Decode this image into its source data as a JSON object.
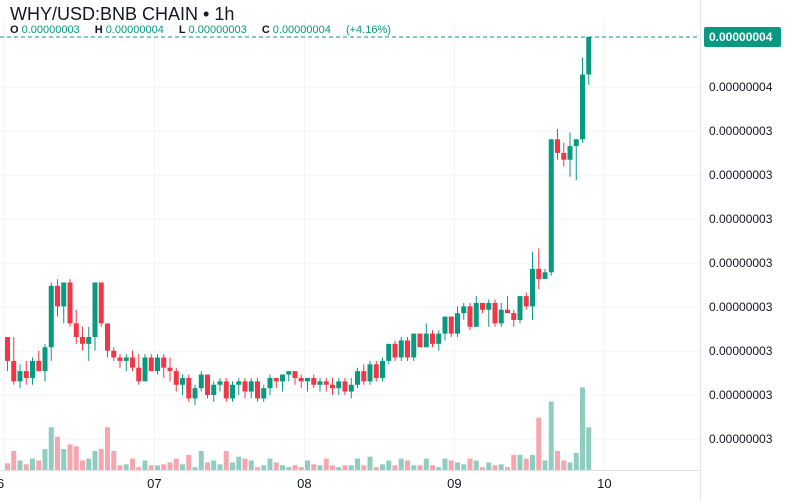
{
  "header": {
    "title": "WHY/USD:BNB CHAIN • 1h",
    "ohlc": {
      "o_label": "O",
      "o_value": "0.00000003",
      "h_label": "H",
      "h_value": "0.00000004",
      "l_label": "L",
      "l_value": "0.00000003",
      "c_label": "C",
      "c_value": "0.00000004",
      "change": "(+4.16%)"
    }
  },
  "colors": {
    "up": "#089981",
    "down": "#f23645",
    "vol_up": "#8fcdc1",
    "vol_down": "#f5a6ae",
    "grid": "#f0f3fa",
    "axis_text": "#131722",
    "price_tag_bg": "#089981"
  },
  "chart_data": {
    "type": "candlestick",
    "last_price_label": "0.00000004",
    "y_tick_labels": [
      "0.00000004",
      "0.00000003",
      "0.00000003",
      "0.00000003",
      "0.00000003",
      "0.00000003",
      "0.00000003",
      "0.00000003",
      "0.00000003"
    ],
    "x_tick_labels": [
      "6",
      "07",
      "08",
      "09",
      "10"
    ],
    "x_ticks_at_candle": [
      -0.5,
      23.5,
      47.5,
      71.5,
      95.5
    ],
    "ylim": [
      2.73,
      4.0
    ],
    "volume_max": 100,
    "candles": [
      [
        3.12,
        3.12,
        3.02,
        3.05,
        7
      ],
      [
        3.05,
        3.12,
        2.98,
        2.99,
        20
      ],
      [
        2.99,
        3.04,
        2.97,
        3.02,
        10
      ],
      [
        3.02,
        3.05,
        2.98,
        3.0,
        6
      ],
      [
        3.0,
        3.06,
        2.98,
        3.05,
        12
      ],
      [
        3.05,
        3.08,
        3.02,
        3.02,
        10
      ],
      [
        3.02,
        3.1,
        2.99,
        3.09,
        22
      ],
      [
        3.09,
        3.28,
        3.05,
        3.27,
        45
      ],
      [
        3.27,
        3.29,
        3.18,
        3.21,
        35
      ],
      [
        3.21,
        3.28,
        3.16,
        3.28,
        22
      ],
      [
        3.28,
        3.29,
        3.15,
        3.16,
        27
      ],
      [
        3.16,
        3.2,
        3.1,
        3.12,
        25
      ],
      [
        3.12,
        3.15,
        3.08,
        3.1,
        10
      ],
      [
        3.1,
        3.15,
        3.05,
        3.12,
        12
      ],
      [
        3.12,
        3.28,
        3.08,
        3.28,
        20
      ],
      [
        3.28,
        3.28,
        3.15,
        3.16,
        22
      ],
      [
        3.16,
        3.16,
        3.06,
        3.08,
        45
      ],
      [
        3.08,
        3.09,
        3.05,
        3.06,
        20
      ],
      [
        3.06,
        3.07,
        3.03,
        3.05,
        5
      ],
      [
        3.05,
        3.07,
        3.02,
        3.06,
        6
      ],
      [
        3.06,
        3.08,
        3.02,
        3.03,
        12
      ],
      [
        3.03,
        3.07,
        2.98,
        2.99,
        3
      ],
      [
        2.99,
        3.07,
        2.99,
        3.06,
        10
      ],
      [
        3.06,
        3.07,
        3.02,
        3.02,
        5
      ],
      [
        3.02,
        3.07,
        3.01,
        3.06,
        5
      ],
      [
        3.06,
        3.07,
        3.0,
        3.03,
        6
      ],
      [
        3.03,
        3.06,
        2.99,
        3.02,
        8
      ],
      [
        3.02,
        3.03,
        2.96,
        2.98,
        12
      ],
      [
        2.98,
        3.01,
        2.95,
        3.0,
        6
      ],
      [
        3.0,
        3.01,
        2.93,
        2.94,
        16
      ],
      [
        2.94,
        2.98,
        2.92,
        2.97,
        3
      ],
      [
        2.97,
        3.02,
        2.96,
        3.01,
        20
      ],
      [
        3.01,
        3.01,
        2.94,
        2.95,
        8
      ],
      [
        2.95,
        2.99,
        2.93,
        2.98,
        10
      ],
      [
        2.98,
        3.0,
        2.96,
        2.99,
        6
      ],
      [
        2.99,
        3.0,
        2.93,
        2.94,
        20
      ],
      [
        2.94,
        2.99,
        2.93,
        2.98,
        8
      ],
      [
        2.98,
        3.0,
        2.95,
        2.99,
        14
      ],
      [
        2.99,
        3.0,
        2.94,
        2.96,
        12
      ],
      [
        2.96,
        3.0,
        2.94,
        2.99,
        10
      ],
      [
        2.99,
        3.0,
        2.93,
        2.94,
        3
      ],
      [
        2.94,
        2.98,
        2.93,
        2.97,
        5
      ],
      [
        2.97,
        3.01,
        2.95,
        3.0,
        12
      ],
      [
        3.0,
        3.0,
        2.97,
        2.99,
        8
      ],
      [
        2.99,
        3.01,
        2.96,
        3.01,
        5
      ],
      [
        3.01,
        3.02,
        2.99,
        3.02,
        3
      ],
      [
        3.02,
        3.02,
        2.98,
        3.0,
        5
      ],
      [
        3.0,
        3.01,
        2.97,
        2.99,
        3
      ],
      [
        2.99,
        3.0,
        2.96,
        3.0,
        10
      ],
      [
        3.0,
        3.01,
        2.97,
        2.98,
        6
      ],
      [
        2.98,
        3.0,
        2.96,
        2.99,
        5
      ],
      [
        2.99,
        3.0,
        2.96,
        2.98,
        12
      ],
      [
        2.98,
        3.0,
        2.95,
        2.97,
        5
      ],
      [
        2.97,
        3.0,
        2.95,
        2.99,
        3
      ],
      [
        2.99,
        3.0,
        2.95,
        2.96,
        5
      ],
      [
        2.96,
        3.0,
        2.94,
        2.98,
        5
      ],
      [
        2.98,
        3.03,
        2.97,
        3.02,
        12
      ],
      [
        3.02,
        3.04,
        2.98,
        2.99,
        5
      ],
      [
        2.99,
        3.05,
        2.98,
        3.04,
        14
      ],
      [
        3.04,
        3.05,
        2.99,
        3.0,
        3
      ],
      [
        3.0,
        3.06,
        2.99,
        3.05,
        6
      ],
      [
        3.05,
        3.1,
        3.04,
        3.1,
        10
      ],
      [
        3.1,
        3.11,
        3.05,
        3.06,
        5
      ],
      [
        3.06,
        3.12,
        3.05,
        3.11,
        12
      ],
      [
        3.11,
        3.12,
        3.05,
        3.06,
        10
      ],
      [
        3.06,
        3.13,
        3.05,
        3.13,
        5
      ],
      [
        3.13,
        3.13,
        3.09,
        3.09,
        5
      ],
      [
        3.09,
        3.16,
        3.09,
        3.13,
        12
      ],
      [
        3.13,
        3.14,
        3.09,
        3.1,
        5
      ],
      [
        3.1,
        3.14,
        3.08,
        3.13,
        3
      ],
      [
        3.13,
        3.18,
        3.11,
        3.18,
        12
      ],
      [
        3.18,
        3.18,
        3.12,
        3.13,
        10
      ],
      [
        3.13,
        3.21,
        3.12,
        3.19,
        8
      ],
      [
        3.19,
        3.22,
        3.17,
        3.21,
        6
      ],
      [
        3.21,
        3.22,
        3.14,
        3.15,
        12
      ],
      [
        3.15,
        3.24,
        3.15,
        3.22,
        10
      ],
      [
        3.22,
        3.22,
        3.19,
        3.2,
        3
      ],
      [
        3.2,
        3.23,
        3.15,
        3.22,
        8
      ],
      [
        3.22,
        3.23,
        3.15,
        3.16,
        5
      ],
      [
        3.16,
        3.22,
        3.15,
        3.2,
        6
      ],
      [
        3.2,
        3.24,
        3.19,
        3.19,
        3
      ],
      [
        3.19,
        3.2,
        3.15,
        3.17,
        16
      ],
      [
        3.17,
        3.24,
        3.16,
        3.24,
        16
      ],
      [
        3.24,
        3.25,
        3.2,
        3.21,
        12
      ],
      [
        3.21,
        3.37,
        3.17,
        3.32,
        16
      ],
      [
        3.32,
        3.38,
        3.26,
        3.29,
        55
      ],
      [
        3.29,
        3.32,
        3.29,
        3.31,
        10
      ],
      [
        3.31,
        3.7,
        3.3,
        3.7,
        72
      ],
      [
        3.7,
        3.73,
        3.64,
        3.66,
        20
      ],
      [
        3.66,
        3.69,
        3.62,
        3.64,
        10
      ],
      [
        3.64,
        3.72,
        3.59,
        3.68,
        8
      ],
      [
        3.68,
        3.7,
        3.58,
        3.7,
        18
      ],
      [
        3.7,
        3.94,
        3.69,
        3.89,
        87
      ],
      [
        3.89,
        4.0,
        3.86,
        4.0,
        45
      ]
    ]
  }
}
